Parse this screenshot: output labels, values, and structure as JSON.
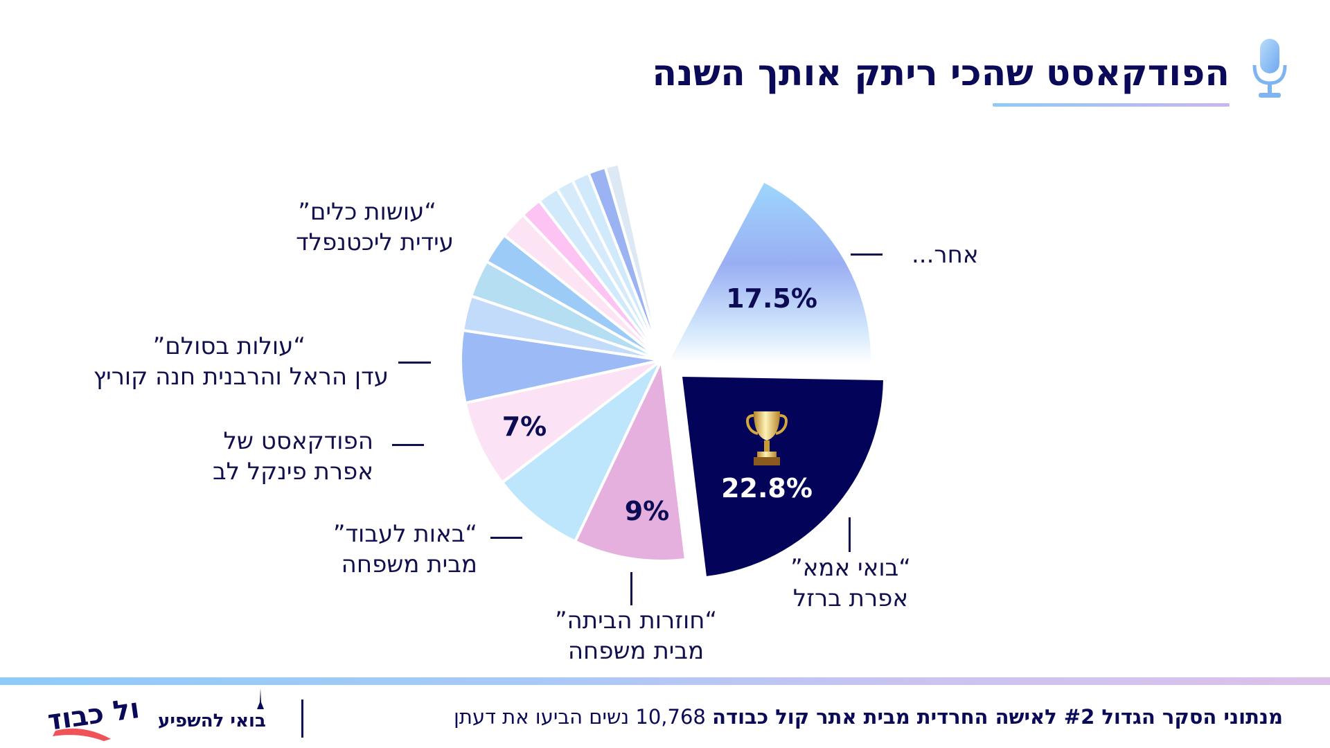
{
  "header": {
    "title": "הפודקאסט שהכי ריתק אותך השנה",
    "icon": "microphone-icon"
  },
  "chart_data": {
    "type": "pie",
    "title": "הפודקאסט שהכי ריתק אותך השנה",
    "slices": [
      {
        "label": "אחר...",
        "value": 17.5,
        "display": "17.5%",
        "color": "#9aaef3",
        "exploded": true
      },
      {
        "label": "\"בואי אמא\" אפרת ברזל",
        "value": 22.8,
        "display": "22.8%",
        "color": "#03035a",
        "exploded": true,
        "icon": "trophy-icon"
      },
      {
        "label": "\"חוזרות הביתה\" מבית משפחה",
        "value": 9,
        "display": "9%",
        "color": "#e5b0de"
      },
      {
        "label": "\"באות לעבוד\" מבית משפחה",
        "value": 7.5,
        "display": "",
        "color": "#bde5fb"
      },
      {
        "label": "הפודקאסט של אפרת פינקל לב",
        "value": 7,
        "display": "7%",
        "color": "#fbe3f5"
      },
      {
        "label": "\"עולות בסולם\" עדן הראל והרבנית חנה קוריץ",
        "value": 5.8,
        "display": "",
        "color": "#9bbaf6"
      },
      {
        "label": "",
        "value": 2.8,
        "display": "",
        "color": "#c3dbfb"
      },
      {
        "label": "",
        "value": 3,
        "display": "",
        "color": "#b5def3"
      },
      {
        "label": "",
        "value": 2.5,
        "display": "",
        "color": "#9ccbf8"
      },
      {
        "label": "",
        "value": 2.2,
        "display": "",
        "color": "#fce4f5"
      },
      {
        "label": "",
        "value": 1.7,
        "display": "",
        "color": "#fcc3f3"
      },
      {
        "label": "",
        "value": 1.7,
        "display": "",
        "color": "#d0eafb"
      },
      {
        "label": "",
        "value": 1.4,
        "display": "",
        "color": "#d5ebfb"
      },
      {
        "label": "",
        "value": 1.4,
        "display": "",
        "color": "#d0eafb"
      },
      {
        "label": "",
        "value": 1.4,
        "display": "",
        "color": "#9bb3f3"
      },
      {
        "label": "\"עושות כלים\" עידית ליכטנפלד",
        "value": 1.1,
        "display": "",
        "color": "#dce8f3"
      }
    ]
  },
  "labels": {
    "other": "אחר...",
    "boi_ima_1": "“בואי אמא”",
    "boi_ima_2": "אפרת ברזל",
    "hozrot_1": "“חוזרות הביתה”",
    "hozrot_2": "מבית משפחה",
    "baot_1": "“באות לעבוד”",
    "baot_2": "מבית משפחה",
    "finkel_1": "הפודקאסט של",
    "finkel_2": "אפרת פינקל לב",
    "olot_1": "“עולות בסולם”",
    "olot_2": "עדן הראל והרבנית חנה קוריץ",
    "osot_1": "“עושות כלים”",
    "osot_2": "עידית ליכטנפלד"
  },
  "footer": {
    "survey_bold": "מנתוני הסקר הגדול #2 לאישה החרדית מבית אתר קול כבודה",
    "survey_rest": "10,768 נשים הביעו את דעתן",
    "cta": "בואי להשפיע",
    "logo_text": "קול כבודה"
  }
}
